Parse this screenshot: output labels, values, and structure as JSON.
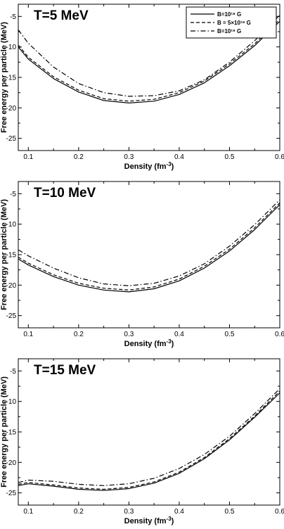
{
  "chart_data": [
    {
      "type": "line",
      "title": "T=5 MeV",
      "xlabel": "Density (fm⁻³)",
      "ylabel": "Free energy per particle (MeV)",
      "xlim": [
        0.08,
        0.6
      ],
      "ylim": [
        -27,
        -3
      ],
      "xticks": [
        0.1,
        0.2,
        0.3,
        0.4,
        0.5,
        0.6
      ],
      "yticks": [
        -25,
        -20,
        -15,
        -10,
        -5
      ],
      "legend": "top-right",
      "grid": false,
      "series": [
        {
          "name": "B=10¹⁸ G",
          "style": "solid",
          "x": [
            0.08,
            0.1,
            0.15,
            0.2,
            0.25,
            0.3,
            0.35,
            0.4,
            0.45,
            0.5,
            0.55,
            0.6
          ],
          "y": [
            -10.0,
            -12.0,
            -15.2,
            -17.4,
            -18.8,
            -19.2,
            -18.9,
            -17.8,
            -15.9,
            -13.1,
            -9.8,
            -5.8
          ]
        },
        {
          "name": "B = 5×10¹⁸ G",
          "style": "dashed",
          "x": [
            0.08,
            0.1,
            0.15,
            0.2,
            0.25,
            0.3,
            0.35,
            0.4,
            0.45,
            0.5,
            0.55,
            0.6
          ],
          "y": [
            -9.7,
            -11.7,
            -14.9,
            -17.1,
            -18.5,
            -18.9,
            -18.6,
            -17.5,
            -15.6,
            -12.8,
            -9.5,
            -5.5
          ]
        },
        {
          "name": "B=10¹⁹ G",
          "style": "dashdot",
          "x": [
            0.08,
            0.1,
            0.15,
            0.2,
            0.25,
            0.3,
            0.35,
            0.4,
            0.45,
            0.5,
            0.55,
            0.6
          ],
          "y": [
            -7.2,
            -9.4,
            -13.3,
            -16.0,
            -17.5,
            -18.1,
            -18.0,
            -17.2,
            -15.4,
            -12.5,
            -9.0,
            -4.8
          ]
        }
      ]
    },
    {
      "type": "line",
      "title": "T=10 MeV",
      "xlabel": "Density (fm⁻³)",
      "ylabel": "Free energy per particle (MeV)",
      "xlim": [
        0.08,
        0.6
      ],
      "ylim": [
        -27,
        -3
      ],
      "xticks": [
        0.1,
        0.2,
        0.3,
        0.4,
        0.5,
        0.6
      ],
      "yticks": [
        -25,
        -20,
        -15,
        -10,
        -5
      ],
      "grid": false,
      "series": [
        {
          "name": "B=10¹⁸ G",
          "style": "solid",
          "x": [
            0.08,
            0.1,
            0.15,
            0.2,
            0.25,
            0.3,
            0.35,
            0.4,
            0.45,
            0.5,
            0.55,
            0.6
          ],
          "y": [
            -15.7,
            -16.7,
            -18.6,
            -20.0,
            -20.8,
            -21.1,
            -20.6,
            -19.3,
            -17.2,
            -14.4,
            -10.9,
            -6.8
          ]
        },
        {
          "name": "B = 5×10¹⁸ G",
          "style": "dashed",
          "x": [
            0.08,
            0.1,
            0.15,
            0.2,
            0.25,
            0.3,
            0.35,
            0.4,
            0.45,
            0.5,
            0.55,
            0.6
          ],
          "y": [
            -15.4,
            -16.4,
            -18.3,
            -19.7,
            -20.5,
            -20.8,
            -20.3,
            -19.0,
            -16.9,
            -14.1,
            -10.6,
            -6.5
          ]
        },
        {
          "name": "B=10¹⁹ G",
          "style": "dashdot",
          "x": [
            0.08,
            0.1,
            0.15,
            0.2,
            0.25,
            0.3,
            0.35,
            0.4,
            0.45,
            0.5,
            0.55,
            0.6
          ],
          "y": [
            -14.2,
            -15.2,
            -17.2,
            -18.8,
            -19.8,
            -20.1,
            -19.7,
            -18.5,
            -16.5,
            -13.6,
            -10.1,
            -6.0
          ]
        }
      ]
    },
    {
      "type": "line",
      "title": "T=15 MeV",
      "xlabel": "Density (fm⁻³)",
      "ylabel": "Free energy per particle (MeV)",
      "xlim": [
        0.08,
        0.6
      ],
      "ylim": [
        -27,
        -3
      ],
      "xticks": [
        0.1,
        0.2,
        0.3,
        0.4,
        0.5,
        0.6
      ],
      "yticks": [
        -25,
        -20,
        -15,
        -10,
        -5
      ],
      "grid": false,
      "series": [
        {
          "name": "B=10¹⁸ G",
          "style": "solid",
          "x": [
            0.08,
            0.1,
            0.15,
            0.2,
            0.25,
            0.3,
            0.35,
            0.4,
            0.45,
            0.5,
            0.55,
            0.6
          ],
          "y": [
            -23.8,
            -23.5,
            -23.9,
            -24.4,
            -24.6,
            -24.3,
            -23.4,
            -21.8,
            -19.4,
            -16.3,
            -12.6,
            -8.6
          ]
        },
        {
          "name": "B = 5×10¹⁸ G",
          "style": "dashed",
          "x": [
            0.08,
            0.1,
            0.15,
            0.2,
            0.25,
            0.3,
            0.35,
            0.4,
            0.45,
            0.5,
            0.55,
            0.6
          ],
          "y": [
            -23.6,
            -23.3,
            -23.7,
            -24.2,
            -24.4,
            -24.1,
            -23.2,
            -21.6,
            -19.2,
            -16.1,
            -12.4,
            -8.3
          ]
        },
        {
          "name": "B=10¹⁹ G",
          "style": "dashdot",
          "x": [
            0.08,
            0.1,
            0.15,
            0.2,
            0.25,
            0.3,
            0.35,
            0.4,
            0.45,
            0.5,
            0.55,
            0.6
          ],
          "y": [
            -23.3,
            -22.9,
            -23.1,
            -23.6,
            -23.8,
            -23.5,
            -22.6,
            -21.0,
            -18.7,
            -15.7,
            -12.0,
            -7.9
          ]
        }
      ]
    }
  ]
}
